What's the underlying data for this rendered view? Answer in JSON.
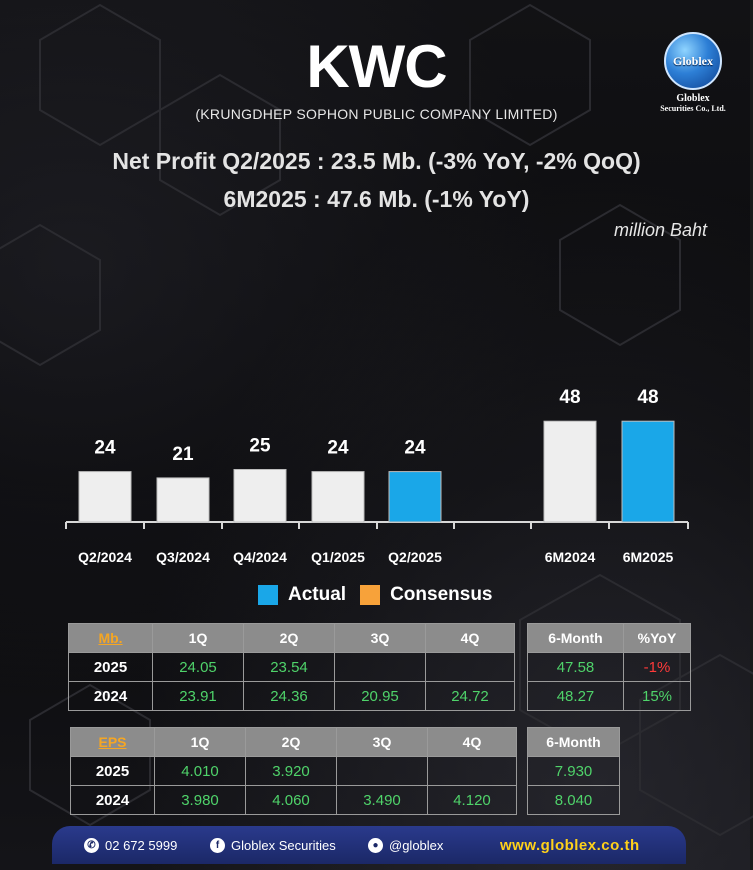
{
  "header": {
    "ticker": "KWC",
    "company": "(KRUNGDHEP SOPHON PUBLIC COMPANY LIMITED)",
    "headline_q": "Net Profit  Q2/2025 : 23.5 Mb. (-3% YoY, -2% QoQ)",
    "headline_6m": "6M2025 : 47.6 Mb. (-1% YoY)",
    "unit": "million Baht"
  },
  "logo": {
    "ball_text": "Globlex",
    "name": "Globlex",
    "sub": "Securities Co., Ltd."
  },
  "colors": {
    "actual": "#1aa7e8",
    "consensus": "#f7a23a",
    "history": "#eeeeee"
  },
  "chart_data": {
    "type": "bar",
    "categories": [
      "Q2/2024",
      "Q3/2024",
      "Q4/2024",
      "Q1/2025",
      "Q2/2025",
      "6M2024",
      "6M2025"
    ],
    "values": [
      24,
      21,
      25,
      24,
      24,
      48,
      48
    ],
    "data_labels": [
      "24",
      "21",
      "25",
      "24",
      "24",
      "48",
      "48"
    ],
    "series_kind": [
      "history",
      "history",
      "history",
      "history",
      "actual",
      "history",
      "actual"
    ],
    "grid": false,
    "legend": "bottom"
  },
  "legend": {
    "actual_label": "Actual",
    "consensus_label": "Consensus"
  },
  "np_table": {
    "corner": "Mb.",
    "quarter_headers": [
      "1Q",
      "2Q",
      "3Q",
      "4Q"
    ],
    "rows": [
      {
        "year": "2025",
        "q": [
          "24.05",
          "23.54",
          "",
          ""
        ]
      },
      {
        "year": "2024",
        "q": [
          "23.91",
          "24.36",
          "20.95",
          "24.72"
        ]
      }
    ],
    "side_headers": [
      "6-Month",
      "%YoY"
    ],
    "side_rows": [
      [
        "47.58",
        "-1%"
      ],
      [
        "48.27",
        "15%"
      ]
    ]
  },
  "eps_table": {
    "corner": "EPS",
    "quarter_headers": [
      "1Q",
      "2Q",
      "3Q",
      "4Q"
    ],
    "rows": [
      {
        "year": "2025",
        "q": [
          "4.010",
          "3.920",
          "",
          ""
        ]
      },
      {
        "year": "2024",
        "q": [
          "3.980",
          "4.060",
          "3.490",
          "4.120"
        ]
      }
    ],
    "side_header": "6-Month",
    "side_rows": [
      "7.930",
      "8.040"
    ]
  },
  "footer": {
    "phone": "02 672 5999",
    "facebook": "Globlex Securities",
    "line": "@globlex",
    "website": "www.globlex.co.th"
  }
}
